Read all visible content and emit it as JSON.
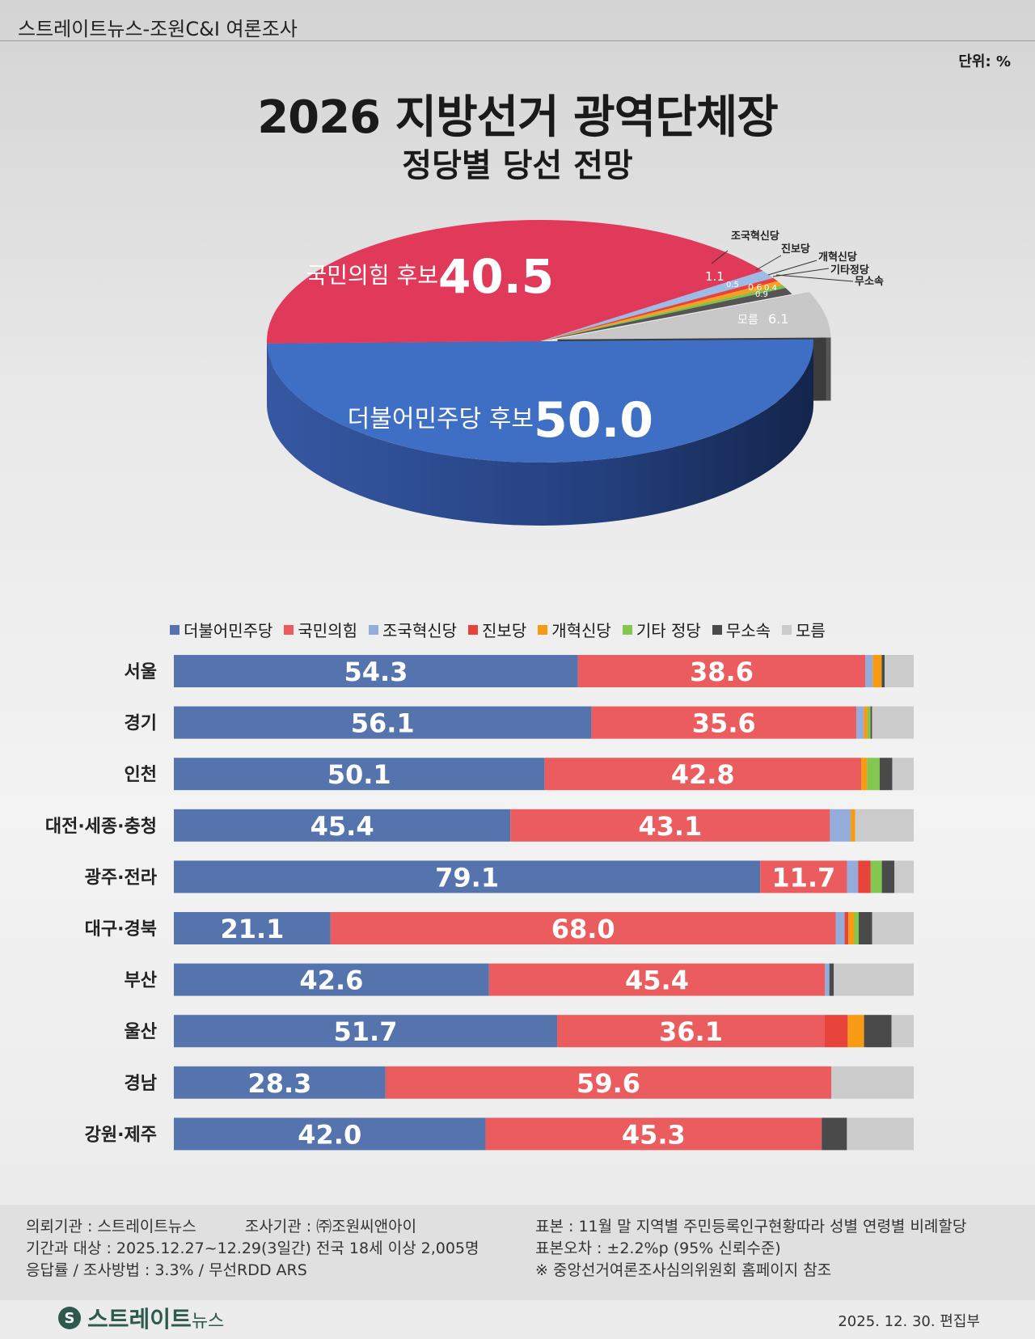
{
  "header": {
    "source": "스트레이트뉴스-조원C&I 여론조사",
    "unit": "단위: %",
    "title": "2026 지방선거 광역단체장",
    "subtitle": "정당별 당선 전망"
  },
  "chart_data": [
    {
      "type": "pie",
      "title": "2026 지방선거 광역단체장",
      "subtitle": "정당별 당선 전망",
      "slices": [
        {
          "label": "더불어민주당 후보",
          "value": 50.0,
          "color": "#3f6fc4"
        },
        {
          "label": "국민의힘 후보",
          "value": 40.5,
          "color": "#e0395a"
        },
        {
          "label": "조국혁신당",
          "value": 1.1,
          "color": "#9dbbe6"
        },
        {
          "label": "진보당",
          "value": 0.5,
          "color": "#e8433a"
        },
        {
          "label": "개혁신당",
          "value": 0.6,
          "color": "#f5a020"
        },
        {
          "label": "기타정당",
          "value": 0.4,
          "color": "#7cc24a"
        },
        {
          "label": "무소속",
          "value": 0.9,
          "color": "#555555"
        },
        {
          "label": "모름",
          "value": 6.1,
          "color": "#c8c8c8"
        }
      ]
    },
    {
      "type": "bar",
      "stacked": true,
      "orientation": "horizontal",
      "categories": [
        "서울",
        "경기",
        "인천",
        "대전·세종·충청",
        "광주·전라",
        "대구·경북",
        "부산",
        "울산",
        "경남",
        "강원·제주"
      ],
      "legend_position": "top",
      "series": [
        {
          "name": "더불어민주당",
          "color": "#5574ae",
          "values": [
            54.3,
            56.1,
            50.1,
            45.4,
            79.1,
            21.1,
            42.6,
            51.7,
            28.3,
            42.0
          ]
        },
        {
          "name": "국민의힘",
          "color": "#eb5c5e",
          "values": [
            38.6,
            35.6,
            42.8,
            43.1,
            11.7,
            68.0,
            45.4,
            36.1,
            59.6,
            45.3
          ]
        },
        {
          "name": "조국혁신당",
          "color": "#93acd9",
          "values": [
            1.0,
            1.0,
            0.0,
            2.8,
            1.5,
            1.2,
            0.6,
            0.0,
            0.0,
            0.0
          ]
        },
        {
          "name": "진보당",
          "color": "#e8433a",
          "values": [
            0.0,
            0.0,
            0.0,
            0.0,
            1.7,
            0.5,
            0.0,
            3.1,
            0.0,
            0.0
          ]
        },
        {
          "name": "개혁신당",
          "color": "#f79a14",
          "values": [
            1.2,
            0.5,
            0.8,
            0.6,
            0.0,
            0.8,
            0.0,
            2.2,
            0.0,
            0.0
          ]
        },
        {
          "name": "기타 정당",
          "color": "#82c850",
          "values": [
            0.0,
            0.4,
            1.7,
            0.0,
            1.5,
            0.6,
            0.0,
            0.0,
            0.0,
            0.0
          ]
        },
        {
          "name": "무소속",
          "color": "#4a4a4a",
          "values": [
            0.4,
            0.2,
            1.7,
            0.0,
            1.7,
            1.8,
            0.6,
            3.7,
            0.0,
            3.4
          ]
        },
        {
          "name": "모름",
          "color": "#cbcbcb",
          "values": [
            3.9,
            5.6,
            2.9,
            7.9,
            2.6,
            5.6,
            10.8,
            3.0,
            11.0,
            9.0
          ]
        }
      ],
      "data_labels": {
        "더불어민주당": [
          "54.3",
          "56.1",
          "50.1",
          "45.4",
          "79.1",
          "21.1",
          "42.6",
          "51.7",
          "28.3",
          "42.0"
        ],
        "국민의힘": [
          "38.6",
          "35.6",
          "42.8",
          "43.1",
          "11.7",
          "68.0",
          "45.4",
          "36.1",
          "59.6",
          "45.3"
        ]
      }
    }
  ],
  "pie_labels": {
    "dem_name": "더불어민주당 후보",
    "dem_value": "50.0",
    "ppp_name": "국민의힘 후보",
    "ppp_value": "40.5",
    "cho_name": "조국혁신당",
    "cho_value": "1.1",
    "jin_name": "진보당",
    "jin_value": "0.5",
    "gae_name": "개혁신당",
    "gae_value": "0.6",
    "etc_name": "기타정당",
    "etc_value": "0.4",
    "ind_name": "무소속",
    "ind_value": "0.9",
    "dk_name": "모름",
    "dk_value": "6.1"
  },
  "footer": {
    "client": "의뢰기관 : 스트레이트뉴스",
    "agency": "조사기관 : ㈜조원씨앤아이",
    "period": "기간과 대상 : 2025.12.27~12.29(3일간)   전국 18세 이상 2,005명",
    "response": "응답률 / 조사방법 : 3.3% / 무선RDD ARS",
    "sample": "표본 : 11월 말 지역별 주민등록인구현황따라 성별 연령별 비례할당",
    "error": "표본오차 : ±2.2%p (95% 신뢰수준)",
    "note": "※ 중앙선거여론조사심의위원회 홈페이지 참조",
    "logo": "스트레이트",
    "logo_small": "뉴스",
    "date": "2025. 12. 30. 편집부"
  }
}
